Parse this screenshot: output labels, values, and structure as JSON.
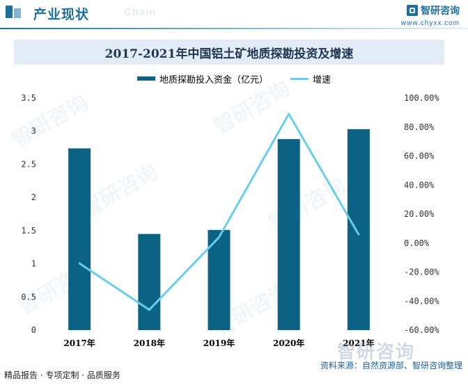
{
  "header": {
    "section_title": "产业现状",
    "ghost_text": "Chain",
    "brand_name": "智研咨询",
    "brand_url": "www.chyxx.com"
  },
  "watermark_text": "智研咨询",
  "chart_data": {
    "type": "bar",
    "title": "2017-2021年中国铝土矿地质探勘投资及增速",
    "categories": [
      "2017年",
      "2018年",
      "2019年",
      "2020年",
      "2021年"
    ],
    "series": [
      {
        "name": "地质探勘投入资金（亿元）",
        "type": "bar",
        "axis": "left",
        "values": [
          2.74,
          1.45,
          1.51,
          2.88,
          3.03
        ]
      },
      {
        "name": "增速",
        "type": "line",
        "axis": "right",
        "values": [
          -14.0,
          -46.0,
          4.0,
          89.0,
          6.0
        ]
      }
    ],
    "y_left": {
      "min": 0,
      "max": 3.5,
      "ticks": [
        "0",
        "0.5",
        "1",
        "1.5",
        "2",
        "2.5",
        "3",
        "3.5"
      ]
    },
    "y_right": {
      "min": -60,
      "max": 100,
      "ticks": [
        "-60.00%",
        "-40.00%",
        "-20.00%",
        "0.00%",
        "20.00%",
        "40.00%",
        "60.00%",
        "80.00%",
        "100.00%"
      ]
    },
    "colors": {
      "bar": "#0b6282",
      "line": "#67cdf0"
    },
    "legend_position": "top-center",
    "grid": false
  },
  "footer": {
    "left": "精品报告 · 专项定制 · 品质服务",
    "source": "资料来源：自然资源部、智研咨询整理"
  }
}
